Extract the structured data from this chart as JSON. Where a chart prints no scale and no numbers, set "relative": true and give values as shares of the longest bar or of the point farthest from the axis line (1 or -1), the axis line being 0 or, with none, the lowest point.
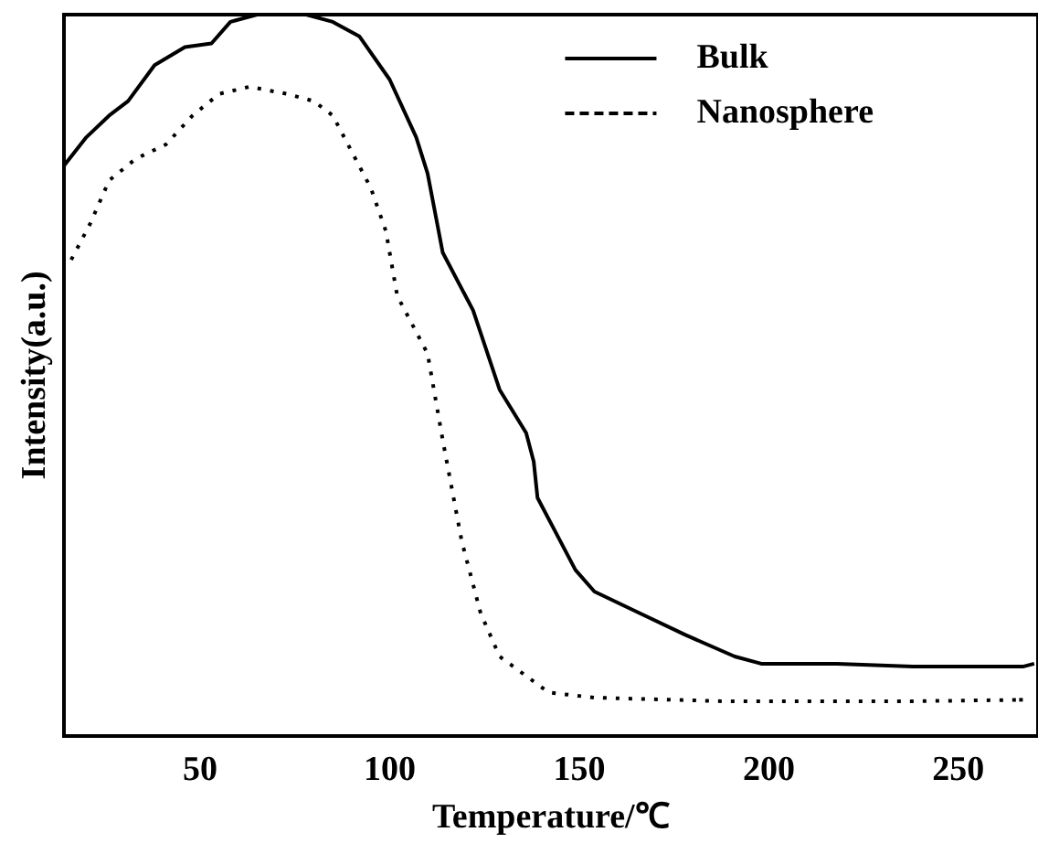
{
  "chart_data": {
    "type": "line",
    "xlabel": "Temperature/℃",
    "ylabel": "Intensity(a.u.)",
    "relative": true,
    "xlim": [
      14,
      271
    ],
    "xticks": [
      50,
      100,
      150,
      200,
      250
    ],
    "grid": false,
    "legend": "top right",
    "marker": "none",
    "series": [
      {
        "name": "Bulk",
        "color": "#000000",
        "line_style": "solid",
        "x": [
          14,
          20,
          26,
          31,
          38,
          46,
          53,
          58,
          65,
          78,
          85,
          92,
          100,
          107,
          110,
          114,
          122,
          129,
          136,
          138,
          139,
          144,
          149,
          154,
          166,
          178,
          191,
          198,
          218,
          238,
          267,
          270
        ],
        "values": [
          0.79,
          0.83,
          0.86,
          0.88,
          0.93,
          0.955,
          0.96,
          0.99,
          1.0,
          1.0,
          0.99,
          0.97,
          0.91,
          0.83,
          0.78,
          0.67,
          0.59,
          0.48,
          0.42,
          0.38,
          0.33,
          0.28,
          0.23,
          0.2,
          0.17,
          0.14,
          0.11,
          0.1,
          0.1,
          0.096,
          0.096,
          0.1
        ]
      },
      {
        "name": "Nanosphere",
        "color": "#000000",
        "line_style": "dotted",
        "x": [
          16,
          21,
          26,
          33,
          41,
          48,
          55,
          63,
          73,
          80,
          85,
          89,
          95,
          99,
          102,
          110,
          114,
          119,
          124,
          129,
          142,
          154,
          188,
          238,
          267
        ],
        "values": [
          0.66,
          0.71,
          0.77,
          0.8,
          0.82,
          0.86,
          0.89,
          0.9,
          0.89,
          0.88,
          0.86,
          0.82,
          0.76,
          0.7,
          0.61,
          0.53,
          0.41,
          0.27,
          0.17,
          0.11,
          0.06,
          0.053,
          0.048,
          0.048,
          0.05
        ]
      }
    ]
  }
}
